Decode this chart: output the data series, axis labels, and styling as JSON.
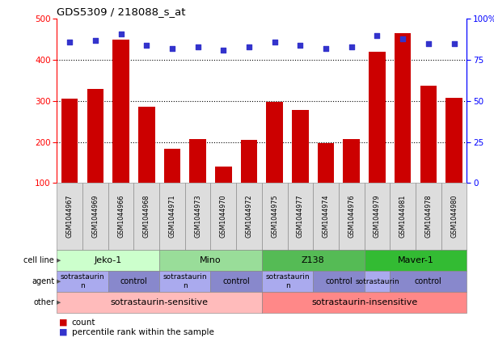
{
  "title": "GDS5309 / 218088_s_at",
  "samples": [
    "GSM1044967",
    "GSM1044969",
    "GSM1044966",
    "GSM1044968",
    "GSM1044971",
    "GSM1044973",
    "GSM1044970",
    "GSM1044972",
    "GSM1044975",
    "GSM1044977",
    "GSM1044974",
    "GSM1044976",
    "GSM1044979",
    "GSM1044981",
    "GSM1044978",
    "GSM1044980"
  ],
  "counts": [
    305,
    330,
    450,
    285,
    183,
    207,
    140,
    205,
    298,
    278,
    198,
    207,
    420,
    465,
    337,
    308
  ],
  "percentiles": [
    86,
    87,
    91,
    84,
    82,
    83,
    81,
    83,
    86,
    84,
    82,
    83,
    90,
    88,
    85,
    85
  ],
  "ylim_left": [
    100,
    500
  ],
  "ylim_right": [
    0,
    100
  ],
  "yticks_left": [
    100,
    200,
    300,
    400,
    500
  ],
  "yticks_right": [
    0,
    25,
    50,
    75,
    100
  ],
  "bar_color": "#cc0000",
  "dot_color": "#3333cc",
  "cell_lines": [
    {
      "label": "Jeko-1",
      "start": 0,
      "end": 4,
      "color": "#ccffcc"
    },
    {
      "label": "Mino",
      "start": 4,
      "end": 8,
      "color": "#99dd99"
    },
    {
      "label": "Z138",
      "start": 8,
      "end": 12,
      "color": "#55bb55"
    },
    {
      "label": "Maver-1",
      "start": 12,
      "end": 16,
      "color": "#33bb33"
    }
  ],
  "agents": [
    {
      "label": "sotrastaurin\nn",
      "start": 0,
      "end": 2,
      "color": "#aaaaee"
    },
    {
      "label": "control",
      "start": 2,
      "end": 4,
      "color": "#8888cc"
    },
    {
      "label": "sotrastaurin\nn",
      "start": 4,
      "end": 6,
      "color": "#aaaaee"
    },
    {
      "label": "control",
      "start": 6,
      "end": 8,
      "color": "#8888cc"
    },
    {
      "label": "sotrastaurin\nn",
      "start": 8,
      "end": 10,
      "color": "#aaaaee"
    },
    {
      "label": "control",
      "start": 10,
      "end": 12,
      "color": "#8888cc"
    },
    {
      "label": "sotrastaurin",
      "start": 12,
      "end": 13,
      "color": "#aaaaee"
    },
    {
      "label": "control",
      "start": 13,
      "end": 16,
      "color": "#8888cc"
    }
  ],
  "others": [
    {
      "label": "sotrastaurin-sensitive",
      "start": 0,
      "end": 8,
      "color": "#ffbbbb"
    },
    {
      "label": "sotrastaurin-insensitive",
      "start": 8,
      "end": 16,
      "color": "#ff8888"
    }
  ],
  "row_labels": [
    "cell line",
    "agent",
    "other"
  ],
  "n_samples": 16
}
